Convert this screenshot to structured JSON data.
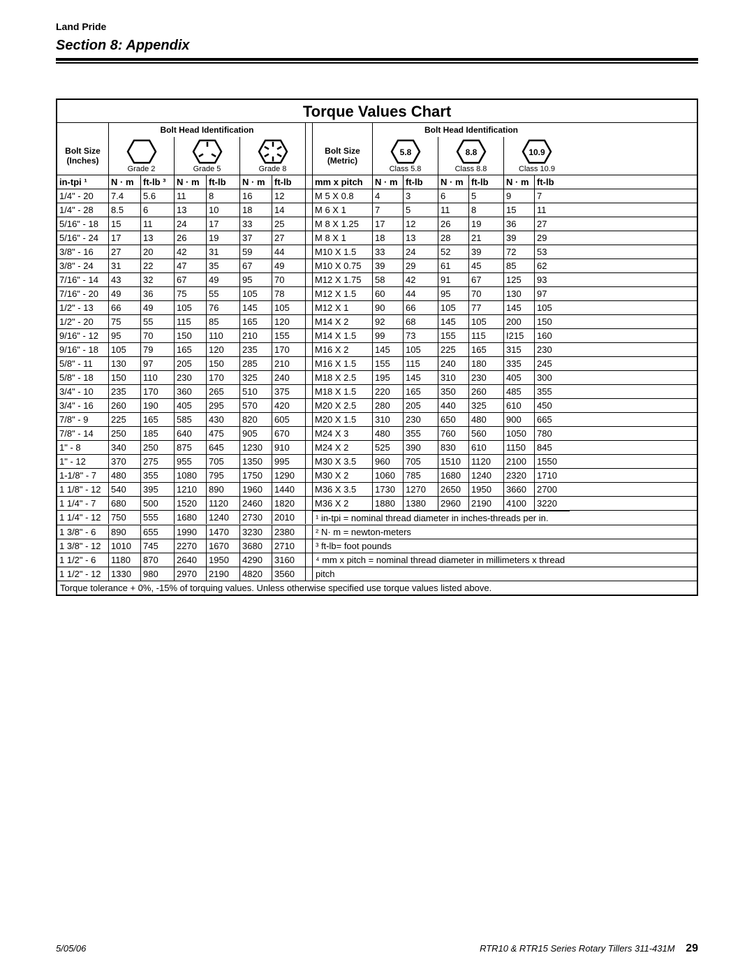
{
  "brand": "Land Pride",
  "section": "Section 8: Appendix",
  "chartTitle": "Torque Values Chart",
  "bhi": "Bolt Head Identification",
  "boltSizeInches": "Bolt Size (Inches)",
  "boltSizeMetric": "Bolt Size (Metric)",
  "gradeLabels": [
    "Grade 2",
    "Grade 5",
    "Grade 8"
  ],
  "classLabels": [
    "Class 5.8",
    "Class 8.8",
    "Class 10.9"
  ],
  "classNums": [
    "5.8",
    "8.8",
    "10.9"
  ],
  "colWidths": {
    "wSize": 74,
    "wNm": 46,
    "wFt": 48,
    "wGap": 10,
    "wMSize": 86,
    "wMNm": 44,
    "wMFt": 50
  },
  "subHeaders": {
    "intpi": "in-tpi ¹",
    "nm": "N · m",
    "ftlb3": "ft-lb ³",
    "ftlb": "ft-lb",
    "mmpitch": "mm x pitch"
  },
  "imperial": [
    [
      "1/4\" - 20",
      "7.4",
      "5.6",
      "11",
      "8",
      "16",
      "12"
    ],
    [
      "1/4\" - 28",
      "8.5",
      "6",
      "13",
      "10",
      "18",
      "14"
    ],
    [
      "5/16\" - 18",
      "15",
      "11",
      "24",
      "17",
      "33",
      "25"
    ],
    [
      "5/16\" - 24",
      "17",
      "13",
      "26",
      "19",
      "37",
      "27"
    ],
    [
      "3/8\" - 16",
      "27",
      "20",
      "42",
      "31",
      "59",
      "44"
    ],
    [
      "3/8\" - 24",
      "31",
      "22",
      "47",
      "35",
      "67",
      "49"
    ],
    [
      "7/16\" - 14",
      "43",
      "32",
      "67",
      "49",
      "95",
      "70"
    ],
    [
      "7/16\" - 20",
      "49",
      "36",
      "75",
      "55",
      "105",
      "78"
    ],
    [
      "1/2\" - 13",
      "66",
      "49",
      "105",
      "76",
      "145",
      "105"
    ],
    [
      "1/2\" - 20",
      "75",
      "55",
      "115",
      "85",
      "165",
      "120"
    ],
    [
      "9/16\" - 12",
      "95",
      "70",
      "150",
      "110",
      "210",
      "155"
    ],
    [
      "9/16\" - 18",
      "105",
      "79",
      "165",
      "120",
      "235",
      "170"
    ],
    [
      "5/8\" - 11",
      "130",
      "97",
      "205",
      "150",
      "285",
      "210"
    ],
    [
      "5/8\" - 18",
      "150",
      "110",
      "230",
      "170",
      "325",
      "240"
    ],
    [
      "3/4\" - 10",
      "235",
      "170",
      "360",
      "265",
      "510",
      "375"
    ],
    [
      "3/4\" - 16",
      "260",
      "190",
      "405",
      "295",
      "570",
      "420"
    ],
    [
      "7/8\" - 9",
      "225",
      "165",
      "585",
      "430",
      "820",
      "605"
    ],
    [
      "7/8\" - 14",
      "250",
      "185",
      "640",
      "475",
      "905",
      "670"
    ],
    [
      "1\" - 8",
      "340",
      "250",
      "875",
      "645",
      "1230",
      "910"
    ],
    [
      "1\" - 12",
      "370",
      "275",
      "955",
      "705",
      "1350",
      "995"
    ],
    [
      "1-1/8\" - 7",
      "480",
      "355",
      "1080",
      "795",
      "1750",
      "1290"
    ],
    [
      "1 1/8\" - 12",
      "540",
      "395",
      "1210",
      "890",
      "1960",
      "1440"
    ],
    [
      "1 1/4\" - 7",
      "680",
      "500",
      "1520",
      "1120",
      "2460",
      "1820"
    ],
    [
      "1 1/4\" - 12",
      "750",
      "555",
      "1680",
      "1240",
      "2730",
      "2010"
    ],
    [
      "1 3/8\" - 6",
      "890",
      "655",
      "1990",
      "1470",
      "3230",
      "2380"
    ],
    [
      "1 3/8\" - 12",
      "1010",
      "745",
      "2270",
      "1670",
      "3680",
      "2710"
    ],
    [
      "1 1/2\" - 6",
      "1180",
      "870",
      "2640",
      "1950",
      "4290",
      "3160"
    ],
    [
      "1 1/2\" - 12",
      "1330",
      "980",
      "2970",
      "2190",
      "4820",
      "3560"
    ]
  ],
  "metric": [
    [
      "M 5 X 0.8",
      "4",
      "3",
      "6",
      "5",
      "9",
      "7"
    ],
    [
      "M 6 X 1",
      "7",
      "5",
      "11",
      "8",
      "15",
      "11"
    ],
    [
      "M 8 X 1.25",
      "17",
      "12",
      "26",
      "19",
      "36",
      "27"
    ],
    [
      "M 8 X 1",
      "18",
      "13",
      "28",
      "21",
      "39",
      "29"
    ],
    [
      "M10 X 1.5",
      "33",
      "24",
      "52",
      "39",
      "72",
      "53"
    ],
    [
      "M10 X 0.75",
      "39",
      "29",
      "61",
      "45",
      "85",
      "62"
    ],
    [
      "M12 X 1.75",
      "58",
      "42",
      "91",
      "67",
      "125",
      "93"
    ],
    [
      "M12 X 1.5",
      "60",
      "44",
      "95",
      "70",
      "130",
      "97"
    ],
    [
      "M12 X 1",
      "90",
      "66",
      "105",
      "77",
      "145",
      "105"
    ],
    [
      "M14 X 2",
      "92",
      "68",
      "145",
      "105",
      "200",
      "150"
    ],
    [
      "M14 X 1.5",
      "99",
      "73",
      "155",
      "115",
      "I215",
      "160"
    ],
    [
      "M16 X 2",
      "145",
      "105",
      "225",
      "165",
      "315",
      "230"
    ],
    [
      "M16 X 1.5",
      "155",
      "115",
      "240",
      "180",
      "335",
      "245"
    ],
    [
      "M18 X 2.5",
      "195",
      "145",
      "310",
      "230",
      "405",
      "300"
    ],
    [
      "M18 X 1.5",
      "220",
      "165",
      "350",
      "260",
      "485",
      "355"
    ],
    [
      "M20 X 2.5",
      "280",
      "205",
      "440",
      "325",
      "610",
      "450"
    ],
    [
      "M20 X 1.5",
      "310",
      "230",
      "650",
      "480",
      "900",
      "665"
    ],
    [
      "M24 X 3",
      "480",
      "355",
      "760",
      "560",
      "1050",
      "780"
    ],
    [
      "M24 X 2",
      "525",
      "390",
      "830",
      "610",
      "1150",
      "845"
    ],
    [
      "M30 X 3.5",
      "960",
      "705",
      "1510",
      "1120",
      "2100",
      "1550"
    ],
    [
      "M30 X 2",
      "1060",
      "785",
      "1680",
      "1240",
      "2320",
      "1710"
    ],
    [
      "M36 X 3.5",
      "1730",
      "1270",
      "2650",
      "1950",
      "3660",
      "2700"
    ],
    [
      "M36 X 2",
      "1880",
      "1380",
      "2960",
      "2190",
      "4100",
      "3220"
    ]
  ],
  "notes": [
    "¹ in-tpi = nominal thread diameter in inches-threads per in.",
    "² N· m = newton-meters",
    "³ ft-lb= foot pounds",
    "⁴ mm x pitch = nominal thread diameter in millimeters x thread",
    "pitch"
  ],
  "tolerance": "Torque tolerance + 0%, -15% of torquing values. Unless otherwise specified use torque values listed above.",
  "footer": {
    "date": "5/05/06",
    "doc": "RTR10 & RTR15 Series Rotary Tillers   311-431M",
    "page": "29"
  }
}
